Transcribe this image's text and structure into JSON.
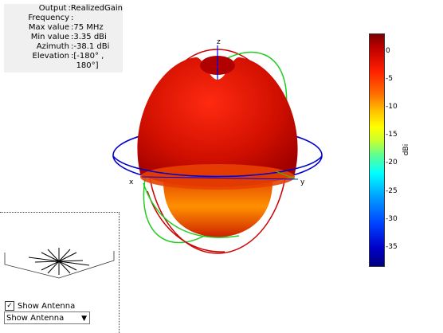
{
  "info": {
    "rows": [
      {
        "label": "Output",
        "value": "RealizedGain"
      },
      {
        "label": "Frequency",
        "value": ""
      },
      {
        "label": "Max value",
        "value": "75 MHz"
      },
      {
        "label": "Min value",
        "value": "3.35 dBi"
      },
      {
        "label": "Azimuth",
        "value": "-38.1 dBi"
      },
      {
        "label": "Elevation",
        "value": "[-180° ,\n 180°]"
      }
    ]
  },
  "axes": {
    "x": "x",
    "y": "y",
    "z": "z"
  },
  "colorbar": {
    "ticks": [
      "0",
      "-5",
      "-10",
      "-15",
      "-20",
      "-25",
      "-30",
      "-35"
    ],
    "unit": "dBi"
  },
  "controls": {
    "show_antenna_label": "Show Antenna",
    "show_antenna_checked": "✓",
    "dropdown_value": "Show Antenna"
  },
  "colors": {
    "ring_azimuth": "#0000cc",
    "ring_green": "#22cc22",
    "ring_red": "#cc0000"
  }
}
